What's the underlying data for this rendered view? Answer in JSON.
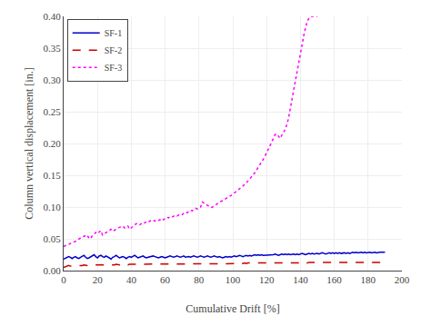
{
  "chart_data": {
    "type": "line",
    "xlabel": "Cumulative Drift [%]",
    "ylabel": "Column vertical displacement [in.]",
    "xlim": [
      0,
      200
    ],
    "ylim": [
      0,
      0.4
    ],
    "xticks": [
      0,
      20,
      40,
      60,
      80,
      100,
      120,
      140,
      160,
      180,
      200
    ],
    "yticks": [
      {
        "value": 0,
        "label": "0.00"
      },
      0.05,
      {
        "value": 0.1,
        "label": "0.10"
      },
      0.15,
      {
        "value": 0.2,
        "label": "0.20"
      },
      0.25,
      {
        "value": 0.3,
        "label": "0.30"
      },
      0.35,
      {
        "value": 0.4,
        "label": "0.40"
      }
    ],
    "grid": true,
    "legend": "upper left",
    "series": [
      {
        "name": "SF-1",
        "color": "#0000cc",
        "line_style": "solid",
        "x": [
          0,
          1,
          2,
          3,
          4,
          5,
          6,
          7,
          8,
          9,
          10,
          11,
          12,
          13,
          14,
          15,
          16,
          17,
          18,
          19,
          20,
          21,
          22,
          23,
          24,
          25,
          26,
          27,
          28,
          29,
          30,
          31,
          32,
          33,
          34,
          35,
          36,
          37,
          38,
          39,
          40,
          41,
          42,
          43,
          44,
          45,
          46,
          47,
          48,
          49,
          50,
          51,
          52,
          53,
          54,
          55,
          56,
          57,
          58,
          59,
          60,
          61,
          62,
          63,
          64,
          65,
          66,
          67,
          68,
          69,
          70,
          71,
          72,
          73,
          74,
          75,
          76,
          77,
          78,
          79,
          80,
          81,
          82,
          83,
          84,
          85,
          86,
          87,
          88,
          89,
          90,
          91,
          92,
          93,
          94,
          95,
          96,
          97,
          98,
          99,
          100,
          101,
          102,
          103,
          104,
          105,
          106,
          107,
          108,
          109,
          110,
          111,
          112,
          113,
          114,
          115,
          116,
          117,
          118,
          119,
          120,
          121,
          122,
          123,
          124,
          125,
          126,
          127,
          128,
          129,
          130,
          131,
          132,
          133,
          134,
          135,
          136,
          137,
          138,
          139,
          140,
          141,
          142,
          143,
          144,
          145,
          146,
          147,
          148,
          149,
          150,
          151,
          152,
          153,
          154,
          155,
          156,
          157,
          158,
          159,
          160,
          161,
          162,
          163,
          164,
          165,
          166,
          167,
          168,
          169,
          170,
          171,
          172,
          173,
          174,
          175,
          176,
          177,
          178,
          179,
          180,
          181,
          182,
          183,
          184,
          185,
          186,
          187,
          188,
          189,
          190
        ],
        "values": [
          0.018,
          0.019,
          0.02,
          0.022,
          0.021,
          0.019,
          0.021,
          0.022,
          0.02,
          0.019,
          0.021,
          0.022,
          0.024,
          0.021,
          0.019,
          0.02,
          0.022,
          0.024,
          0.025,
          0.022,
          0.02,
          0.023,
          0.024,
          0.022,
          0.021,
          0.023,
          0.022,
          0.02,
          0.018,
          0.021,
          0.022,
          0.024,
          0.022,
          0.02,
          0.021,
          0.022,
          0.021,
          0.019,
          0.021,
          0.022,
          0.021,
          0.023,
          0.024,
          0.022,
          0.02,
          0.021,
          0.022,
          0.023,
          0.021,
          0.02,
          0.021,
          0.022,
          0.022,
          0.023,
          0.022,
          0.021,
          0.02,
          0.021,
          0.022,
          0.021,
          0.02,
          0.021,
          0.022,
          0.023,
          0.022,
          0.021,
          0.022,
          0.023,
          0.022,
          0.021,
          0.022,
          0.023,
          0.021,
          0.022,
          0.022,
          0.021,
          0.022,
          0.023,
          0.022,
          0.021,
          0.022,
          0.023,
          0.022,
          0.021,
          0.022,
          0.023,
          0.022,
          0.021,
          0.022,
          0.023,
          0.022,
          0.021,
          0.022,
          0.021,
          0.02,
          0.021,
          0.022,
          0.021,
          0.022,
          0.021,
          0.022,
          0.023,
          0.022,
          0.023,
          0.024,
          0.023,
          0.022,
          0.023,
          0.024,
          0.023,
          0.024,
          0.023,
          0.024,
          0.025,
          0.024,
          0.025,
          0.024,
          0.025,
          0.024,
          0.024,
          0.025,
          0.024,
          0.025,
          0.024,
          0.025,
          0.026,
          0.025,
          0.024,
          0.025,
          0.026,
          0.025,
          0.026,
          0.025,
          0.026,
          0.025,
          0.026,
          0.026,
          0.025,
          0.026,
          0.025,
          0.026,
          0.027,
          0.026,
          0.025,
          0.026,
          0.027,
          0.026,
          0.027,
          0.026,
          0.027,
          0.027,
          0.026,
          0.027,
          0.028,
          0.027,
          0.026,
          0.027,
          0.028,
          0.027,
          0.028,
          0.027,
          0.028,
          0.027,
          0.028,
          0.027,
          0.028,
          0.028,
          0.027,
          0.028,
          0.027,
          0.028,
          0.029,
          0.028,
          0.029,
          0.028,
          0.029,
          0.029,
          0.028,
          0.029,
          0.028,
          0.029,
          0.029,
          0.028,
          0.029,
          0.029,
          0.028,
          0.029,
          0.029,
          0.029,
          0.029,
          0.029
        ]
      },
      {
        "name": "SF-2",
        "color": "#cc0000",
        "line_style": "dashed",
        "x": [
          0,
          1,
          2,
          3,
          4,
          5,
          6,
          7,
          8,
          9,
          10,
          11,
          12,
          13,
          14,
          15,
          16,
          17,
          18,
          19,
          20,
          21,
          22,
          23,
          24,
          25,
          26,
          27,
          28,
          29,
          30,
          31,
          32,
          33,
          34,
          35,
          36,
          37,
          38,
          39,
          40,
          41,
          42,
          43,
          44,
          45,
          46,
          47,
          48,
          49,
          50,
          51,
          52,
          53,
          54,
          55,
          56,
          57,
          58,
          59,
          60,
          61,
          62,
          63,
          64,
          65,
          66,
          67,
          68,
          69,
          70,
          71,
          72,
          73,
          74,
          75,
          76,
          77,
          78,
          79,
          80,
          81,
          82,
          83,
          84,
          85,
          86,
          87,
          88,
          89,
          90,
          91,
          92,
          93,
          94,
          95,
          96,
          97,
          98,
          99,
          100,
          101,
          102,
          103,
          104,
          105,
          106,
          107,
          108,
          109,
          110,
          111,
          112,
          113,
          114,
          115,
          116,
          117,
          118,
          119,
          120,
          121,
          122,
          123,
          124,
          125,
          126,
          127,
          128,
          129,
          130,
          131,
          132,
          133,
          134,
          135,
          136,
          137,
          138,
          139,
          140,
          141,
          142,
          143,
          144,
          145,
          146,
          147,
          148,
          149,
          150,
          151,
          152,
          153,
          154,
          155,
          156,
          157,
          158,
          159,
          160,
          161,
          162,
          163,
          164,
          165,
          166,
          167,
          168,
          169,
          170,
          171,
          172,
          173,
          174,
          175,
          176,
          177,
          178,
          179,
          180,
          181,
          182,
          183,
          184,
          185,
          186,
          187,
          188,
          189,
          190
        ],
        "values": [
          0.005,
          0.006,
          0.007,
          0.008,
          0.007,
          0.007,
          0.007,
          0.008,
          0.007,
          0.007,
          0.008,
          0.008,
          0.009,
          0.008,
          0.008,
          0.009,
          0.009,
          0.009,
          0.008,
          0.009,
          0.009,
          0.009,
          0.009,
          0.009,
          0.009,
          0.009,
          0.009,
          0.009,
          0.009,
          0.009,
          0.009,
          0.01,
          0.009,
          0.009,
          0.01,
          0.009,
          0.009,
          0.01,
          0.009,
          0.01,
          0.01,
          0.01,
          0.01,
          0.01,
          0.01,
          0.01,
          0.01,
          0.01,
          0.01,
          0.01,
          0.01,
          0.01,
          0.01,
          0.01,
          0.01,
          0.01,
          0.01,
          0.01,
          0.01,
          0.01,
          0.01,
          0.01,
          0.01,
          0.01,
          0.01,
          0.01,
          0.01,
          0.01,
          0.01,
          0.011,
          0.01,
          0.011,
          0.01,
          0.011,
          0.01,
          0.011,
          0.011,
          0.01,
          0.011,
          0.011,
          0.011,
          0.011,
          0.011,
          0.011,
          0.011,
          0.011,
          0.011,
          0.011,
          0.011,
          0.011,
          0.011,
          0.011,
          0.011,
          0.011,
          0.011,
          0.011,
          0.011,
          0.011,
          0.011,
          0.011,
          0.011,
          0.011,
          0.011,
          0.011,
          0.011,
          0.012,
          0.011,
          0.012,
          0.011,
          0.012,
          0.012,
          0.011,
          0.012,
          0.012,
          0.011,
          0.012,
          0.012,
          0.012,
          0.012,
          0.012,
          0.012,
          0.012,
          0.012,
          0.012,
          0.012,
          0.012,
          0.012,
          0.012,
          0.012,
          0.012,
          0.012,
          0.012,
          0.012,
          0.012,
          0.012,
          0.012,
          0.012,
          0.012,
          0.012,
          0.012,
          0.012,
          0.013,
          0.012,
          0.013,
          0.012,
          0.013,
          0.013,
          0.012,
          0.013,
          0.013,
          0.013,
          0.013,
          0.013,
          0.013,
          0.013,
          0.013,
          0.013,
          0.013,
          0.013,
          0.013,
          0.013,
          0.013,
          0.013,
          0.013,
          0.013,
          0.013,
          0.013,
          0.013,
          0.013,
          0.013,
          0.013,
          0.013,
          0.013,
          0.013,
          0.013,
          0.013,
          0.013,
          0.013,
          0.013,
          0.013,
          0.013,
          0.013,
          0.013,
          0.013,
          0.013,
          0.013,
          0.013,
          0.013,
          0.013,
          0.013,
          0.013
        ]
      },
      {
        "name": "SF-3",
        "color": "#ff00ff",
        "line_style": "dotted",
        "x": [
          0,
          1,
          2,
          3,
          4,
          5,
          6,
          7,
          8,
          9,
          10,
          11,
          12,
          13,
          14,
          15,
          16,
          17,
          18,
          19,
          20,
          21,
          22,
          23,
          24,
          25,
          26,
          27,
          28,
          29,
          30,
          31,
          32,
          33,
          34,
          35,
          36,
          37,
          38,
          39,
          40,
          41,
          42,
          43,
          44,
          45,
          46,
          47,
          48,
          49,
          50,
          51,
          52,
          53,
          54,
          55,
          56,
          57,
          58,
          59,
          60,
          61,
          62,
          63,
          64,
          65,
          66,
          67,
          68,
          69,
          70,
          71,
          72,
          73,
          74,
          75,
          76,
          77,
          78,
          79,
          80,
          81,
          82,
          83,
          84,
          85,
          86,
          87,
          88,
          89,
          90,
          91,
          92,
          93,
          94,
          95,
          96,
          97,
          98,
          99,
          100,
          101,
          102,
          103,
          104,
          105,
          106,
          107,
          108,
          109,
          110,
          111,
          112,
          113,
          114,
          115,
          116,
          117,
          118,
          119,
          120,
          121,
          122,
          123,
          124,
          125,
          126,
          127,
          128,
          129,
          130,
          131,
          132,
          133,
          134,
          135,
          136,
          137,
          138,
          139,
          140,
          141,
          142,
          143,
          144,
          145,
          146,
          147,
          148,
          149,
          150
        ],
        "values": [
          0.038,
          0.039,
          0.04,
          0.041,
          0.042,
          0.043,
          0.044,
          0.046,
          0.048,
          0.05,
          0.052,
          0.053,
          0.054,
          0.055,
          0.056,
          0.05,
          0.051,
          0.055,
          0.058,
          0.06,
          0.058,
          0.061,
          0.063,
          0.056,
          0.058,
          0.06,
          0.062,
          0.063,
          0.065,
          0.062,
          0.063,
          0.065,
          0.067,
          0.068,
          0.068,
          0.07,
          0.067,
          0.068,
          0.07,
          0.065,
          0.067,
          0.07,
          0.072,
          0.074,
          0.074,
          0.072,
          0.074,
          0.076,
          0.075,
          0.077,
          0.076,
          0.078,
          0.08,
          0.079,
          0.078,
          0.08,
          0.079,
          0.08,
          0.082,
          0.08,
          0.082,
          0.084,
          0.083,
          0.085,
          0.084,
          0.085,
          0.087,
          0.086,
          0.088,
          0.089,
          0.088,
          0.09,
          0.092,
          0.091,
          0.093,
          0.095,
          0.094,
          0.096,
          0.098,
          0.097,
          0.099,
          0.1,
          0.108,
          0.106,
          0.104,
          0.102,
          0.1,
          0.099,
          0.1,
          0.102,
          0.104,
          0.105,
          0.107,
          0.109,
          0.11,
          0.112,
          0.113,
          0.115,
          0.117,
          0.118,
          0.12,
          0.122,
          0.124,
          0.126,
          0.128,
          0.13,
          0.133,
          0.136,
          0.138,
          0.141,
          0.144,
          0.147,
          0.15,
          0.154,
          0.158,
          0.162,
          0.166,
          0.17,
          0.175,
          0.18,
          0.185,
          0.19,
          0.196,
          0.202,
          0.208,
          0.214,
          0.215,
          0.212,
          0.208,
          0.213,
          0.217,
          0.222,
          0.23,
          0.24,
          0.255,
          0.27,
          0.285,
          0.3,
          0.315,
          0.33,
          0.345,
          0.358,
          0.37,
          0.382,
          0.392,
          0.397,
          0.4,
          0.4,
          0.4,
          0.4,
          0.4
        ]
      }
    ]
  }
}
